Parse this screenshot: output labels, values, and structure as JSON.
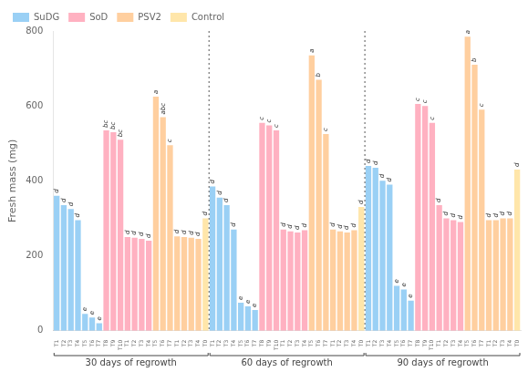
{
  "chart_data": {
    "type": "bar",
    "ylabel": "Fresh mass (mg)",
    "ylim": [
      0,
      800
    ],
    "yticks": [
      0,
      200,
      400,
      600,
      800
    ],
    "grid": false,
    "legend": "upper left",
    "categories": [
      "T1",
      "T2",
      "T3",
      "T4",
      "T5",
      "T6",
      "T7",
      "T8",
      "T9",
      "T10",
      "T1",
      "T2",
      "T3",
      "T4",
      "T5",
      "T6",
      "T7",
      "T1",
      "T2",
      "T3",
      "T4",
      "T0",
      "T1",
      "T2",
      "T3",
      "T4",
      "T5",
      "T6",
      "T7",
      "T8",
      "T9",
      "T10",
      "T1",
      "T2",
      "T3",
      "T4",
      "T5",
      "T6",
      "T7",
      "T1",
      "T2",
      "T3",
      "T4",
      "T0",
      "T1",
      "T2",
      "T3",
      "T4",
      "T5",
      "T6",
      "T7",
      "T8",
      "T9",
      "T10",
      "T1",
      "T2",
      "T3",
      "T4",
      "T5",
      "T6",
      "T7",
      "T1",
      "T2",
      "T3",
      "T4",
      "T0"
    ],
    "category_groups": [
      "30 days of regrowth",
      "30 days of regrowth",
      "30 days of regrowth",
      "30 days of regrowth",
      "30 days of regrowth",
      "30 days of regrowth",
      "30 days of regrowth",
      "30 days of regrowth",
      "30 days of regrowth",
      "30 days of regrowth",
      "30 days of regrowth",
      "30 days of regrowth",
      "30 days of regrowth",
      "30 days of regrowth",
      "30 days of regrowth",
      "30 days of regrowth",
      "30 days of regrowth",
      "30 days of regrowth",
      "30 days of regrowth",
      "30 days of regrowth",
      "30 days of regrowth",
      "30 days of regrowth",
      "60 days of regrowth",
      "60 days of regrowth",
      "60 days of regrowth",
      "60 days of regrowth",
      "60 days of regrowth",
      "60 days of regrowth",
      "60 days of regrowth",
      "60 days of regrowth",
      "60 days of regrowth",
      "60 days of regrowth",
      "60 days of regrowth",
      "60 days of regrowth",
      "60 days of regrowth",
      "60 days of regrowth",
      "60 days of regrowth",
      "60 days of regrowth",
      "60 days of regrowth",
      "60 days of regrowth",
      "60 days of regrowth",
      "60 days of regrowth",
      "60 days of regrowth",
      "60 days of regrowth",
      "90 days of regrowth",
      "90 days of regrowth",
      "90 days of regrowth",
      "90 days of regrowth",
      "90 days of regrowth",
      "90 days of regrowth",
      "90 days of regrowth",
      "90 days of regrowth",
      "90 days of regrowth",
      "90 days of regrowth",
      "90 days of regrowth",
      "90 days of regrowth",
      "90 days of regrowth",
      "90 days of regrowth",
      "90 days of regrowth",
      "90 days of regrowth",
      "90 days of regrowth",
      "90 days of regrowth",
      "90 days of regrowth",
      "90 days of regrowth",
      "90 days of regrowth",
      "90 days of regrowth"
    ],
    "series": [
      {
        "name": "SuDG",
        "values": [
          360,
          335,
          325,
          295,
          45,
          35,
          20,
          null,
          null,
          null,
          null,
          null,
          null,
          null,
          null,
          null,
          null,
          null,
          null,
          null,
          null,
          null,
          385,
          355,
          335,
          270,
          75,
          65,
          55,
          null,
          null,
          null,
          null,
          null,
          null,
          null,
          null,
          null,
          null,
          null,
          null,
          null,
          null,
          null,
          440,
          435,
          400,
          390,
          120,
          110,
          80,
          null,
          null,
          null,
          null,
          null,
          null,
          null,
          null,
          null,
          null,
          null,
          null,
          null,
          null,
          null
        ],
        "letters": [
          "d",
          "d",
          "d",
          "d",
          "e",
          "e",
          "e",
          null,
          null,
          null,
          null,
          null,
          null,
          null,
          null,
          null,
          null,
          null,
          null,
          null,
          null,
          null,
          "d",
          "d",
          "d",
          "d",
          "e",
          "e",
          "e",
          null,
          null,
          null,
          null,
          null,
          null,
          null,
          null,
          null,
          null,
          null,
          null,
          null,
          null,
          null,
          "d",
          "d",
          "d",
          "d",
          "e",
          "e",
          "e",
          null,
          null,
          null,
          null,
          null,
          null,
          null,
          null,
          null,
          null,
          null,
          null,
          null,
          null,
          null
        ]
      },
      {
        "name": "SoD",
        "values": [
          null,
          null,
          null,
          null,
          null,
          null,
          null,
          535,
          530,
          510,
          250,
          248,
          245,
          240,
          null,
          null,
          null,
          null,
          null,
          null,
          null,
          null,
          null,
          null,
          null,
          null,
          null,
          null,
          null,
          555,
          548,
          535,
          270,
          265,
          262,
          268,
          null,
          null,
          null,
          null,
          null,
          null,
          null,
          null,
          null,
          null,
          null,
          null,
          null,
          null,
          null,
          605,
          600,
          555,
          335,
          300,
          295,
          290,
          null,
          null,
          null,
          null,
          null,
          null,
          null,
          null
        ],
        "letters": [
          null,
          null,
          null,
          null,
          null,
          null,
          null,
          "bc",
          "bc",
          "bc",
          "d",
          "d",
          "d",
          "d",
          null,
          null,
          null,
          null,
          null,
          null,
          null,
          null,
          null,
          null,
          null,
          null,
          null,
          null,
          null,
          "c",
          "c",
          "c",
          "d",
          "d",
          "d",
          "d",
          null,
          null,
          null,
          null,
          null,
          null,
          null,
          null,
          null,
          null,
          null,
          null,
          null,
          null,
          null,
          "c",
          "c",
          "c",
          "d",
          "d",
          "d",
          "d",
          null,
          null,
          null,
          null,
          null,
          null,
          null,
          null
        ]
      },
      {
        "name": "PSV2",
        "values": [
          null,
          null,
          null,
          null,
          null,
          null,
          null,
          null,
          null,
          null,
          null,
          null,
          null,
          null,
          625,
          570,
          495,
          252,
          250,
          248,
          245,
          null,
          null,
          null,
          null,
          null,
          null,
          null,
          null,
          null,
          null,
          null,
          null,
          null,
          null,
          null,
          735,
          670,
          525,
          270,
          265,
          262,
          268,
          null,
          null,
          null,
          null,
          null,
          null,
          null,
          null,
          null,
          null,
          null,
          null,
          null,
          null,
          null,
          785,
          710,
          590,
          295,
          295,
          300,
          300,
          null
        ],
        "letters": [
          null,
          null,
          null,
          null,
          null,
          null,
          null,
          null,
          null,
          null,
          null,
          null,
          null,
          null,
          "a",
          "abc",
          "c",
          "d",
          "d",
          "d",
          "d",
          null,
          null,
          null,
          null,
          null,
          null,
          null,
          null,
          null,
          null,
          null,
          null,
          null,
          null,
          null,
          "a",
          "b",
          "c",
          "d",
          "d",
          "d",
          "d",
          null,
          null,
          null,
          null,
          null,
          null,
          null,
          null,
          null,
          null,
          null,
          null,
          null,
          null,
          null,
          "a",
          "b",
          "c",
          "d",
          "d",
          "d",
          "d",
          null
        ]
      },
      {
        "name": "Control",
        "values": [
          null,
          null,
          null,
          null,
          null,
          null,
          null,
          null,
          null,
          null,
          null,
          null,
          null,
          null,
          null,
          null,
          null,
          null,
          null,
          null,
          null,
          300,
          null,
          null,
          null,
          null,
          null,
          null,
          null,
          null,
          null,
          null,
          null,
          null,
          null,
          null,
          null,
          null,
          null,
          null,
          null,
          null,
          null,
          330,
          null,
          null,
          null,
          null,
          null,
          null,
          null,
          null,
          null,
          null,
          null,
          null,
          null,
          null,
          null,
          null,
          null,
          null,
          null,
          null,
          null,
          430
        ],
        "letters": [
          null,
          null,
          null,
          null,
          null,
          null,
          null,
          null,
          null,
          null,
          null,
          null,
          null,
          null,
          null,
          null,
          null,
          null,
          null,
          null,
          null,
          "d",
          null,
          null,
          null,
          null,
          null,
          null,
          null,
          null,
          null,
          null,
          null,
          null,
          null,
          null,
          null,
          null,
          null,
          null,
          null,
          null,
          null,
          "d",
          null,
          null,
          null,
          null,
          null,
          null,
          null,
          null,
          null,
          null,
          null,
          null,
          null,
          null,
          null,
          null,
          null,
          null,
          null,
          null,
          null,
          "d"
        ]
      }
    ]
  }
}
